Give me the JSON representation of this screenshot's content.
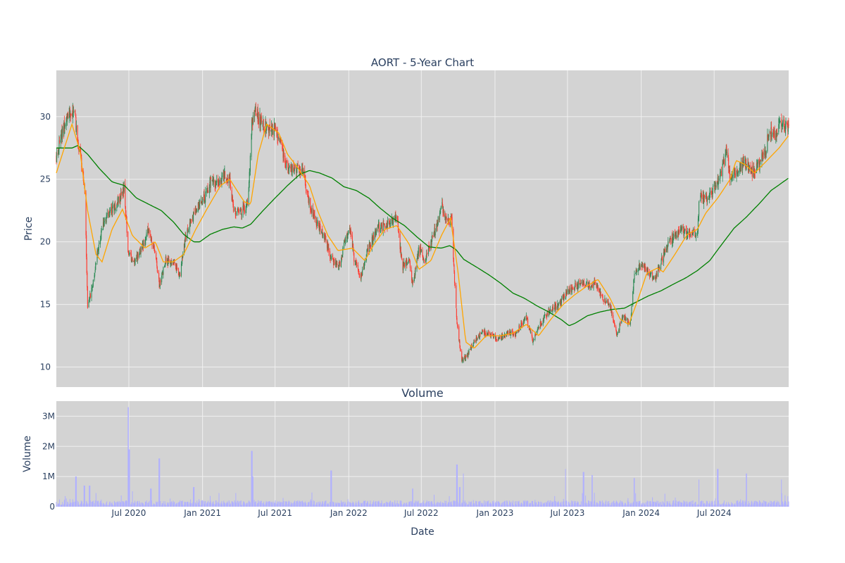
{
  "chart_data": [
    {
      "type": "candlestick",
      "title": "AORT - 5-Year Chart",
      "ylabel": "Price",
      "xlabel": "",
      "ylim": [
        8.4,
        33.7
      ],
      "xlim": [
        "2020-01-02",
        "2025-01-03"
      ],
      "yticks": [
        10,
        15,
        20,
        25,
        30
      ],
      "grid": true,
      "colors": {
        "up": "#2e8b57",
        "down": "#ff3b30",
        "ma_short": "#ffa500",
        "ma_long": "#008000",
        "background": "#d3d3d3",
        "grid": "#f0f0f0"
      },
      "price_anchors": [
        [
          "2020-01-02",
          26.8
        ],
        [
          "2020-01-15",
          28.5
        ],
        [
          "2020-02-01",
          30.1
        ],
        [
          "2020-02-15",
          30.6
        ],
        [
          "2020-02-25",
          28.0
        ],
        [
          "2020-03-05",
          26.0
        ],
        [
          "2020-03-12",
          24.5
        ],
        [
          "2020-03-16",
          20.5
        ],
        [
          "2020-03-20",
          14.8
        ],
        [
          "2020-04-01",
          16.5
        ],
        [
          "2020-04-15",
          19.5
        ],
        [
          "2020-05-01",
          21.8
        ],
        [
          "2020-05-20",
          22.6
        ],
        [
          "2020-06-10",
          23.5
        ],
        [
          "2020-06-20",
          24.2
        ],
        [
          "2020-06-29",
          19.0
        ],
        [
          "2020-07-15",
          18.3
        ],
        [
          "2020-08-01",
          19.5
        ],
        [
          "2020-08-20",
          21.0
        ],
        [
          "2020-09-05",
          19.0
        ],
        [
          "2020-09-15",
          16.5
        ],
        [
          "2020-10-01",
          18.5
        ],
        [
          "2020-10-20",
          18.5
        ],
        [
          "2020-11-05",
          17.3
        ],
        [
          "2020-11-20",
          20.5
        ],
        [
          "2020-12-15",
          22.5
        ],
        [
          "2021-01-05",
          23.5
        ],
        [
          "2021-01-25",
          25.0
        ],
        [
          "2021-02-10",
          24.5
        ],
        [
          "2021-02-25",
          25.5
        ],
        [
          "2021-03-10",
          24.8
        ],
        [
          "2021-03-20",
          22.5
        ],
        [
          "2021-04-10",
          22.5
        ],
        [
          "2021-04-25",
          23.0
        ],
        [
          "2021-05-04",
          29.5
        ],
        [
          "2021-05-12",
          30.5
        ],
        [
          "2021-06-01",
          29.2
        ],
        [
          "2021-06-20",
          29.0
        ],
        [
          "2021-07-05",
          29.0
        ],
        [
          "2021-07-20",
          27.0
        ],
        [
          "2021-08-05",
          25.8
        ],
        [
          "2021-08-20",
          26.0
        ],
        [
          "2021-09-10",
          25.5
        ],
        [
          "2021-09-25",
          23.0
        ],
        [
          "2021-10-15",
          21.5
        ],
        [
          "2021-11-01",
          20.5
        ],
        [
          "2021-11-20",
          18.5
        ],
        [
          "2021-12-10",
          18.2
        ],
        [
          "2021-12-25",
          20.5
        ],
        [
          "2022-01-05",
          21.0
        ],
        [
          "2022-01-15",
          18.5
        ],
        [
          "2022-02-01",
          17.2
        ],
        [
          "2022-02-15",
          19.0
        ],
        [
          "2022-03-10",
          21.0
        ],
        [
          "2022-03-25",
          21.2
        ],
        [
          "2022-04-15",
          21.5
        ],
        [
          "2022-05-01",
          22.0
        ],
        [
          "2022-05-15",
          18.0
        ],
        [
          "2022-06-01",
          18.5
        ],
        [
          "2022-06-10",
          16.5
        ],
        [
          "2022-06-25",
          19.5
        ],
        [
          "2022-07-10",
          18.5
        ],
        [
          "2022-07-25",
          20.0
        ],
        [
          "2022-08-10",
          21.5
        ],
        [
          "2022-08-22",
          22.8
        ],
        [
          "2022-09-05",
          21.5
        ],
        [
          "2022-09-15",
          22.0
        ],
        [
          "2022-09-20",
          18.0
        ],
        [
          "2022-09-28",
          13.5
        ],
        [
          "2022-10-10",
          10.5
        ],
        [
          "2022-10-25",
          11.0
        ],
        [
          "2022-11-10",
          12.0
        ],
        [
          "2022-12-01",
          12.8
        ],
        [
          "2022-12-20",
          12.5
        ],
        [
          "2023-01-10",
          12.2
        ],
        [
          "2023-02-01",
          12.8
        ],
        [
          "2023-02-20",
          12.6
        ],
        [
          "2023-03-10",
          13.5
        ],
        [
          "2023-03-20",
          14.0
        ],
        [
          "2023-04-05",
          12.0
        ],
        [
          "2023-04-25",
          13.5
        ],
        [
          "2023-05-15",
          14.5
        ],
        [
          "2023-06-10",
          15.0
        ],
        [
          "2023-07-01",
          16.0
        ],
        [
          "2023-07-20",
          16.5
        ],
        [
          "2023-08-10",
          16.8
        ],
        [
          "2023-08-25",
          16.5
        ],
        [
          "2023-09-10",
          16.8
        ],
        [
          "2023-09-25",
          15.5
        ],
        [
          "2023-10-15",
          15.0
        ],
        [
          "2023-11-01",
          12.5
        ],
        [
          "2023-11-15",
          14.0
        ],
        [
          "2023-12-05",
          13.5
        ],
        [
          "2023-12-15",
          17.5
        ],
        [
          "2024-01-05",
          18.3
        ],
        [
          "2024-01-20",
          17.5
        ],
        [
          "2024-02-05",
          17.0
        ],
        [
          "2024-02-20",
          18.5
        ],
        [
          "2024-03-10",
          20.0
        ],
        [
          "2024-03-25",
          20.5
        ],
        [
          "2024-04-10",
          21.0
        ],
        [
          "2024-04-25",
          20.5
        ],
        [
          "2024-05-10",
          21.0
        ],
        [
          "2024-05-20",
          20.5
        ],
        [
          "2024-05-25",
          23.5
        ],
        [
          "2024-06-15",
          23.5
        ],
        [
          "2024-07-05",
          24.5
        ],
        [
          "2024-07-20",
          25.5
        ],
        [
          "2024-08-01",
          27.5
        ],
        [
          "2024-08-10",
          25.0
        ],
        [
          "2024-08-25",
          25.5
        ],
        [
          "2024-09-15",
          26.5
        ],
        [
          "2024-10-01",
          25.5
        ],
        [
          "2024-10-15",
          26.0
        ],
        [
          "2024-11-05",
          27.0
        ],
        [
          "2024-11-15",
          28.8
        ],
        [
          "2024-12-01",
          28.5
        ],
        [
          "2024-12-15",
          29.5
        ],
        [
          "2025-01-03",
          29.0
        ]
      ],
      "ma_short_anchors": [
        [
          "2020-01-02",
          25.5
        ],
        [
          "2020-02-10",
          29.4
        ],
        [
          "2020-03-01",
          27.3
        ],
        [
          "2020-03-20",
          22.5
        ],
        [
          "2020-04-10",
          19.0
        ],
        [
          "2020-04-25",
          18.4
        ],
        [
          "2020-05-20",
          21.0
        ],
        [
          "2020-06-15",
          22.6
        ],
        [
          "2020-07-10",
          20.5
        ],
        [
          "2020-08-10",
          19.5
        ],
        [
          "2020-09-05",
          20.0
        ],
        [
          "2020-09-25",
          18.4
        ],
        [
          "2020-10-20",
          18.4
        ],
        [
          "2020-11-15",
          19.0
        ],
        [
          "2020-12-15",
          21.0
        ],
        [
          "2021-01-15",
          22.8
        ],
        [
          "2021-02-15",
          24.5
        ],
        [
          "2021-03-10",
          25.0
        ],
        [
          "2021-04-15",
          23.2
        ],
        [
          "2021-05-01",
          23.0
        ],
        [
          "2021-05-20",
          27.0
        ],
        [
          "2021-06-10",
          29.4
        ],
        [
          "2021-07-10",
          28.7
        ],
        [
          "2021-08-01",
          27.0
        ],
        [
          "2021-08-25",
          26.0
        ],
        [
          "2021-09-25",
          24.5
        ],
        [
          "2021-10-15",
          22.5
        ],
        [
          "2021-11-10",
          20.5
        ],
        [
          "2021-12-05",
          19.3
        ],
        [
          "2022-01-10",
          19.5
        ],
        [
          "2022-02-10",
          18.5
        ],
        [
          "2022-03-05",
          19.8
        ],
        [
          "2022-04-01",
          21.0
        ],
        [
          "2022-05-01",
          21.3
        ],
        [
          "2022-06-01",
          19.8
        ],
        [
          "2022-06-25",
          17.8
        ],
        [
          "2022-07-25",
          18.5
        ],
        [
          "2022-08-20",
          20.5
        ],
        [
          "2022-09-12",
          21.9
        ],
        [
          "2022-10-01",
          17.5
        ],
        [
          "2022-10-20",
          12.0
        ],
        [
          "2022-11-10",
          11.5
        ],
        [
          "2022-12-10",
          12.5
        ],
        [
          "2023-01-15",
          12.5
        ],
        [
          "2023-02-15",
          12.7
        ],
        [
          "2023-03-20",
          13.4
        ],
        [
          "2023-04-20",
          12.5
        ],
        [
          "2023-05-20",
          13.8
        ],
        [
          "2023-06-20",
          15.0
        ],
        [
          "2023-07-20",
          15.8
        ],
        [
          "2023-08-20",
          16.5
        ],
        [
          "2023-09-15",
          17.0
        ],
        [
          "2023-10-15",
          15.5
        ],
        [
          "2023-11-10",
          13.8
        ],
        [
          "2023-12-01",
          13.4
        ],
        [
          "2023-12-25",
          15.5
        ],
        [
          "2024-01-15",
          17.5
        ],
        [
          "2024-02-10",
          17.9
        ],
        [
          "2024-02-25",
          17.6
        ],
        [
          "2024-03-25",
          19.0
        ],
        [
          "2024-04-25",
          20.6
        ],
        [
          "2024-05-20",
          21.0
        ],
        [
          "2024-06-10",
          22.3
        ],
        [
          "2024-07-10",
          23.5
        ],
        [
          "2024-08-10",
          25.0
        ],
        [
          "2024-08-25",
          26.5
        ],
        [
          "2024-09-15",
          26.2
        ],
        [
          "2024-10-10",
          25.5
        ],
        [
          "2024-11-10",
          26.5
        ],
        [
          "2024-12-10",
          27.5
        ],
        [
          "2025-01-03",
          28.5
        ]
      ],
      "ma_long_anchors": [
        [
          "2020-01-02",
          27.5
        ],
        [
          "2020-02-10",
          27.5
        ],
        [
          "2020-02-25",
          27.7
        ],
        [
          "2020-03-20",
          27.0
        ],
        [
          "2020-04-20",
          25.8
        ],
        [
          "2020-05-20",
          24.8
        ],
        [
          "2020-06-20",
          24.5
        ],
        [
          "2020-07-20",
          23.5
        ],
        [
          "2020-08-20",
          23.0
        ],
        [
          "2020-09-20",
          22.5
        ],
        [
          "2020-10-20",
          21.6
        ],
        [
          "2020-11-15",
          20.6
        ],
        [
          "2020-12-10",
          20.0
        ],
        [
          "2020-12-25",
          20.0
        ],
        [
          "2021-01-20",
          20.6
        ],
        [
          "2021-02-20",
          21.0
        ],
        [
          "2021-03-20",
          21.2
        ],
        [
          "2021-04-10",
          21.1
        ],
        [
          "2021-05-01",
          21.4
        ],
        [
          "2021-06-01",
          22.5
        ],
        [
          "2021-07-01",
          23.5
        ],
        [
          "2021-08-01",
          24.5
        ],
        [
          "2021-09-01",
          25.4
        ],
        [
          "2021-09-25",
          25.7
        ],
        [
          "2021-10-20",
          25.5
        ],
        [
          "2021-11-20",
          25.1
        ],
        [
          "2021-12-20",
          24.4
        ],
        [
          "2022-01-20",
          24.1
        ],
        [
          "2022-02-20",
          23.5
        ],
        [
          "2022-03-20",
          22.7
        ],
        [
          "2022-04-20",
          21.9
        ],
        [
          "2022-05-20",
          21.3
        ],
        [
          "2022-06-20",
          20.4
        ],
        [
          "2022-07-20",
          19.6
        ],
        [
          "2022-08-20",
          19.5
        ],
        [
          "2022-09-10",
          19.7
        ],
        [
          "2022-09-25",
          19.4
        ],
        [
          "2022-10-15",
          18.6
        ],
        [
          "2022-11-15",
          18.0
        ],
        [
          "2022-12-15",
          17.4
        ],
        [
          "2023-01-15",
          16.7
        ],
        [
          "2023-02-15",
          15.9
        ],
        [
          "2023-03-15",
          15.5
        ],
        [
          "2023-04-15",
          14.9
        ],
        [
          "2023-05-15",
          14.4
        ],
        [
          "2023-06-15",
          13.8
        ],
        [
          "2023-07-05",
          13.3
        ],
        [
          "2023-07-20",
          13.5
        ],
        [
          "2023-08-20",
          14.1
        ],
        [
          "2023-09-20",
          14.4
        ],
        [
          "2023-10-20",
          14.6
        ],
        [
          "2023-11-20",
          14.7
        ],
        [
          "2023-12-20",
          15.2
        ],
        [
          "2024-01-20",
          15.7
        ],
        [
          "2024-02-20",
          16.1
        ],
        [
          "2024-03-20",
          16.6
        ],
        [
          "2024-04-20",
          17.1
        ],
        [
          "2024-05-20",
          17.7
        ],
        [
          "2024-06-20",
          18.5
        ],
        [
          "2024-07-20",
          19.8
        ],
        [
          "2024-08-20",
          21.1
        ],
        [
          "2024-09-20",
          22.0
        ],
        [
          "2024-10-20",
          23.0
        ],
        [
          "2024-11-20",
          24.1
        ],
        [
          "2025-01-03",
          25.1
        ]
      ]
    },
    {
      "type": "bar",
      "title": "Volume",
      "xlabel": "Date",
      "ylabel": "Volume",
      "ylim": [
        0,
        3500000
      ],
      "yticks": [
        0,
        1000000,
        2000000,
        3000000
      ],
      "ytick_labels": [
        "0",
        "1M",
        "2M",
        "3M"
      ],
      "xticks": [
        "2020-07-01",
        "2021-01-01",
        "2021-07-01",
        "2022-01-01",
        "2022-07-01",
        "2023-01-01",
        "2023-07-01",
        "2024-01-01",
        "2024-07-01"
      ],
      "xtick_labels": [
        "Jul 2020",
        "Jan 2021",
        "Jul 2021",
        "Jan 2022",
        "Jul 2022",
        "Jan 2023",
        "Jul 2023",
        "Jan 2024",
        "Jul 2024"
      ],
      "colors": {
        "bar": "#b0b0ff",
        "background": "#d3d3d3",
        "grid": "#f0f0f0"
      },
      "baseline": 150000,
      "spikes": [
        [
          "2020-02-20",
          1000000
        ],
        [
          "2020-03-12",
          700000
        ],
        [
          "2020-03-25",
          700000
        ],
        [
          "2020-06-29",
          3300000
        ],
        [
          "2020-07-02",
          1900000
        ],
        [
          "2020-08-25",
          600000
        ],
        [
          "2020-09-15",
          1600000
        ],
        [
          "2020-12-10",
          650000
        ],
        [
          "2021-05-04",
          1850000
        ],
        [
          "2021-05-07",
          1000000
        ],
        [
          "2021-11-18",
          1200000
        ],
        [
          "2022-06-10",
          600000
        ],
        [
          "2022-09-28",
          1400000
        ],
        [
          "2022-10-05",
          650000
        ],
        [
          "2022-10-15",
          1100000
        ],
        [
          "2023-06-25",
          1250000
        ],
        [
          "2023-08-10",
          1150000
        ],
        [
          "2023-09-01",
          1050000
        ],
        [
          "2023-12-15",
          950000
        ],
        [
          "2024-05-25",
          900000
        ],
        [
          "2024-07-10",
          1250000
        ],
        [
          "2024-09-20",
          1100000
        ],
        [
          "2024-12-15",
          900000
        ]
      ]
    }
  ]
}
